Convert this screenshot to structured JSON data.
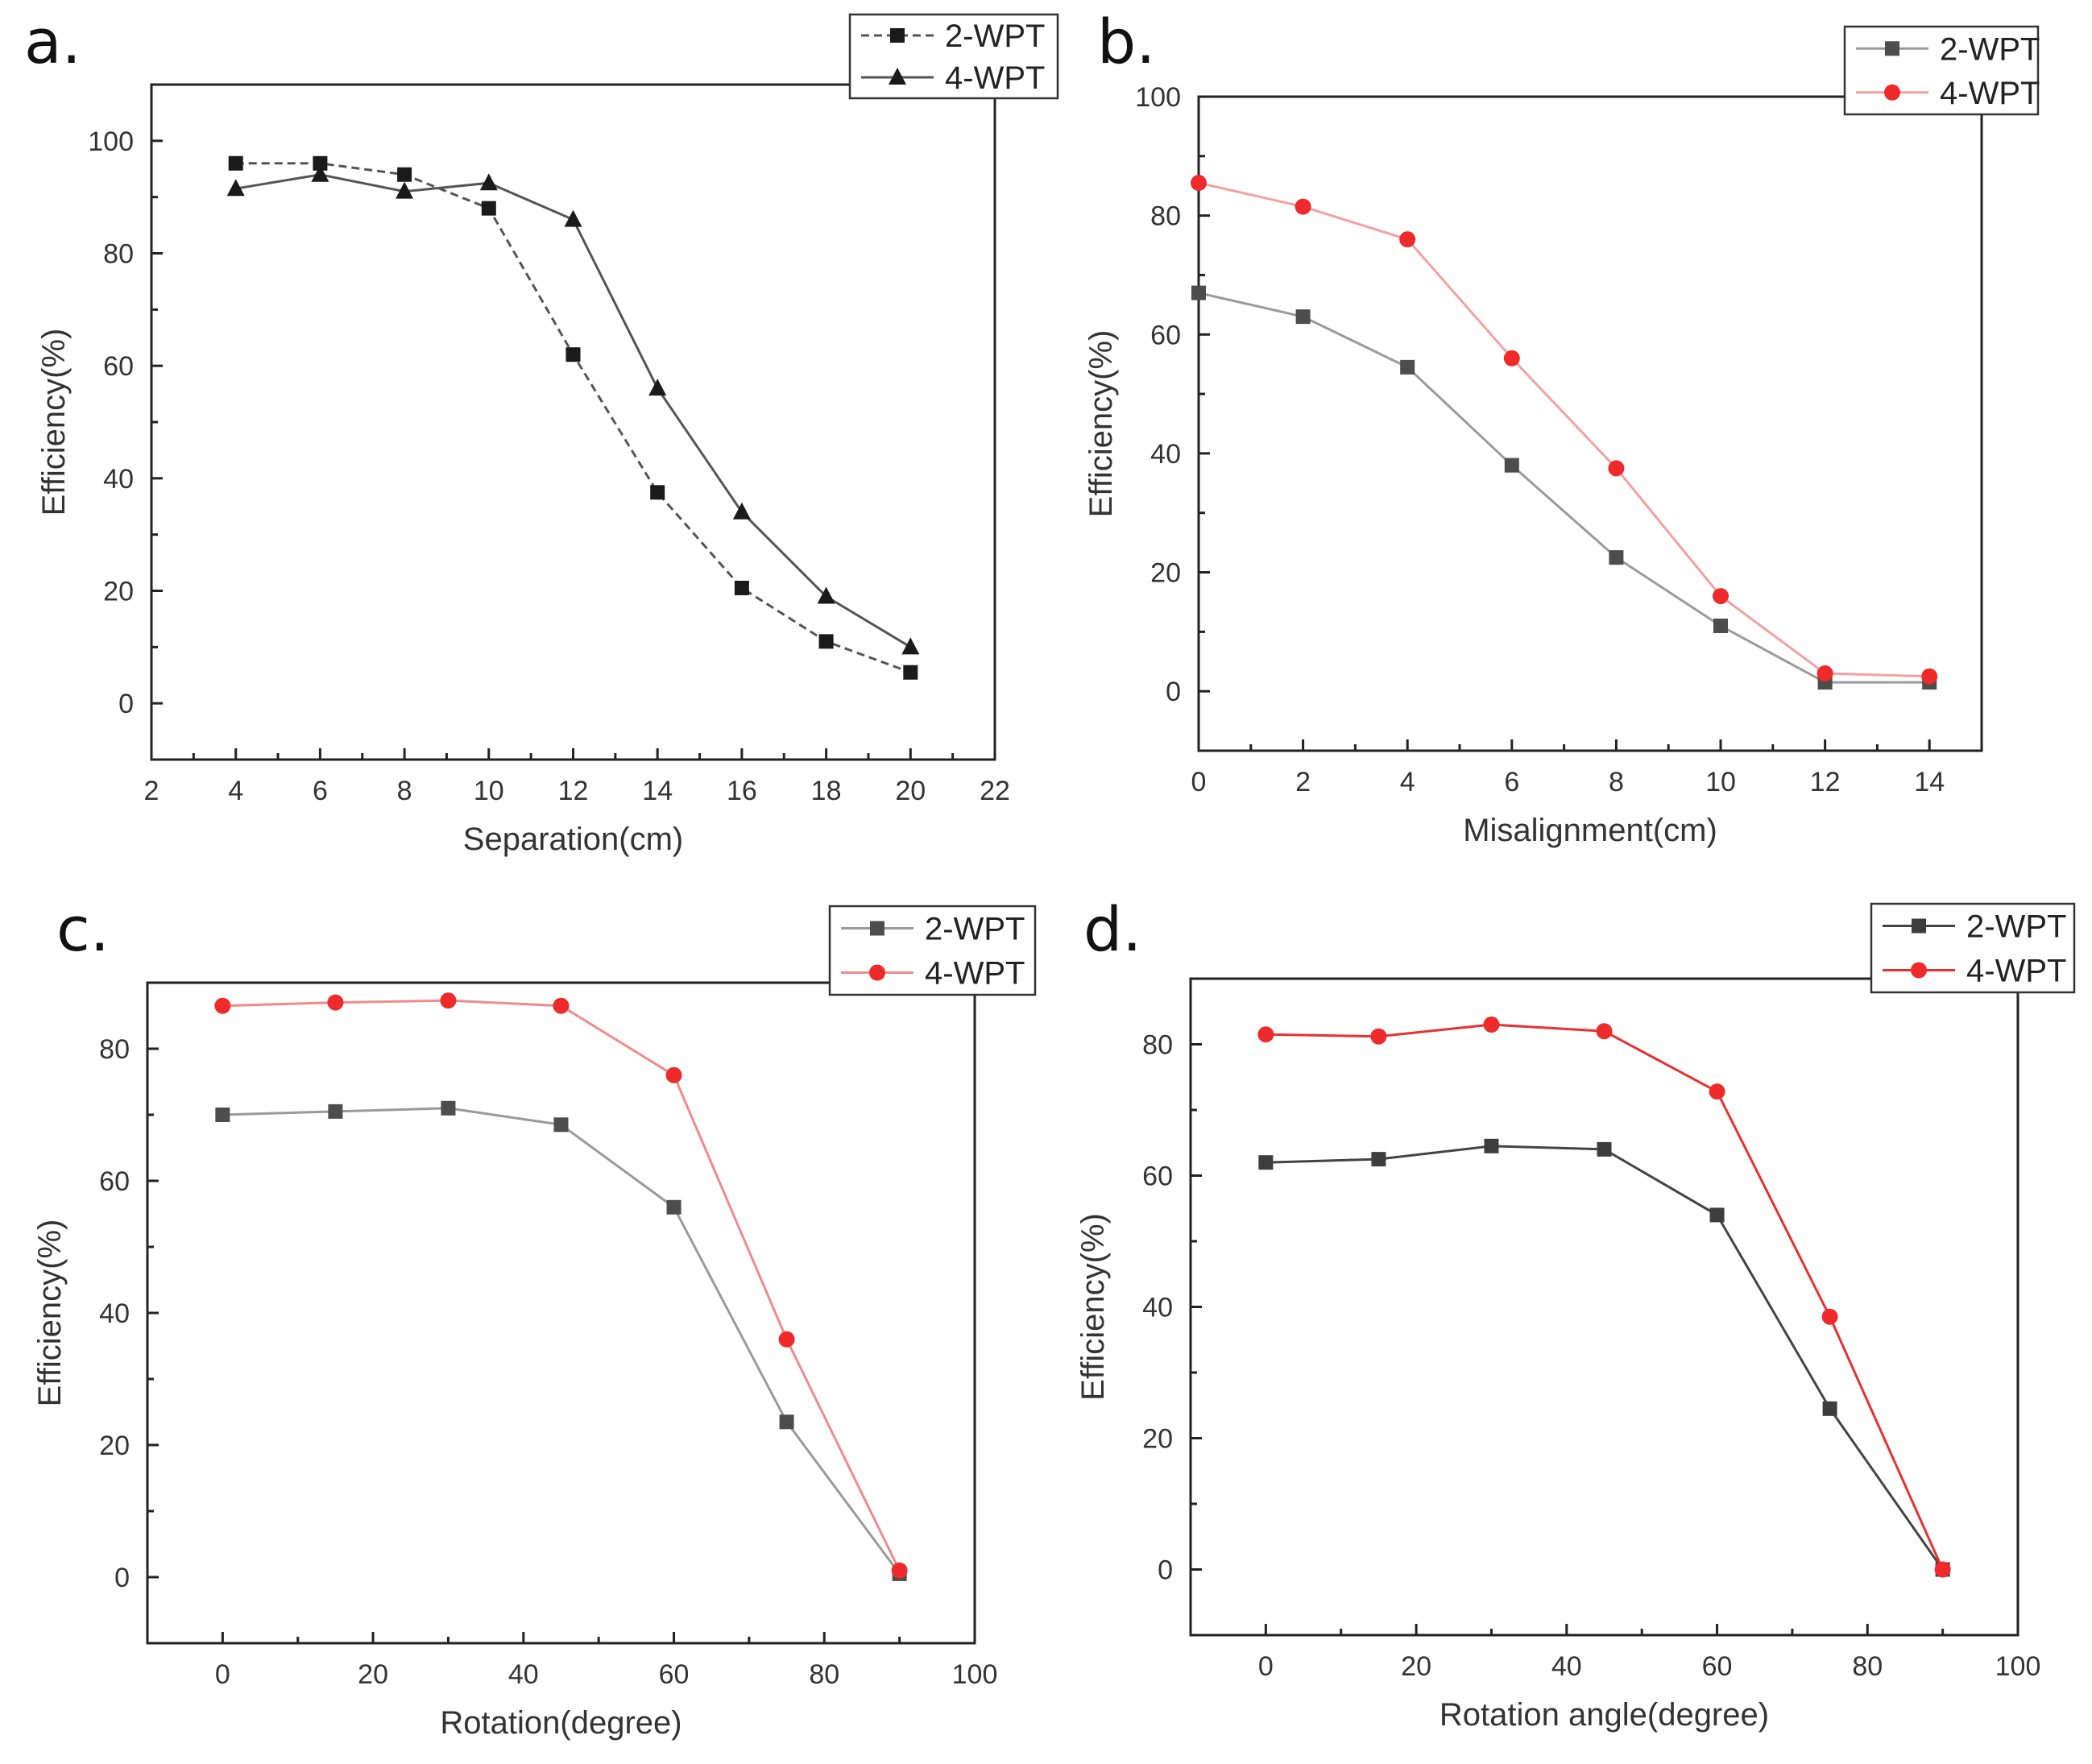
{
  "chart_data": [
    {
      "panel": "a.",
      "type": "line",
      "xlabel": "Separation(cm)",
      "ylabel": "Efficiency(%)",
      "xlim": [
        2,
        22
      ],
      "ylim": [
        -10,
        110
      ],
      "xticks": [
        2,
        4,
        6,
        8,
        10,
        12,
        14,
        16,
        18,
        20,
        22
      ],
      "yticks": [
        0,
        20,
        40,
        60,
        80,
        100
      ],
      "legend": "top-right",
      "series": [
        {
          "name": "2-WPT",
          "marker": "square",
          "color": "#1a1a1a",
          "line": "#555555",
          "dash": "10,6",
          "x": [
            4,
            6,
            8,
            10,
            12,
            14,
            16,
            18,
            20
          ],
          "y": [
            96,
            96,
            94,
            88,
            62,
            37.5,
            20.5,
            11,
            5.5
          ]
        },
        {
          "name": "4-WPT",
          "marker": "triangle",
          "color": "#1a1a1a",
          "line": "#555555",
          "dash": "",
          "x": [
            4,
            6,
            8,
            10,
            12,
            14,
            16,
            18,
            20
          ],
          "y": [
            91.5,
            94,
            91,
            92.5,
            86,
            56,
            34,
            19,
            10
          ]
        }
      ]
    },
    {
      "panel": "b.",
      "type": "line",
      "xlabel": "Misalignment(cm)",
      "ylabel": "Efficiency(%)",
      "xlim": [
        0,
        15
      ],
      "ylim": [
        -10,
        100
      ],
      "xticks": [
        0,
        2,
        4,
        6,
        8,
        10,
        12,
        14
      ],
      "yticks": [
        0,
        20,
        40,
        60,
        80,
        100
      ],
      "legend": "top-right",
      "series": [
        {
          "name": "2-WPT",
          "marker": "square",
          "color": "#4d4d4d",
          "line": "#9a9a9a",
          "dash": "",
          "x": [
            0,
            2,
            4,
            6,
            8,
            10,
            12,
            14
          ],
          "y": [
            67,
            63,
            54.5,
            38,
            22.5,
            11,
            1.5,
            1.5
          ]
        },
        {
          "name": "4-WPT",
          "marker": "circle",
          "color": "#ee2a2a",
          "line": "#f3a0a0",
          "dash": "",
          "x": [
            0,
            2,
            4,
            6,
            8,
            10,
            12,
            14
          ],
          "y": [
            85.5,
            81.5,
            76,
            56,
            37.5,
            16,
            3,
            2.5
          ]
        }
      ]
    },
    {
      "panel": "c.",
      "type": "line",
      "xlabel": "Rotation(degree)",
      "ylabel": "Efficiency(%)",
      "xlim": [
        -10,
        100
      ],
      "ylim": [
        -10,
        90
      ],
      "xticks": [
        0,
        20,
        40,
        60,
        80,
        100
      ],
      "yticks": [
        0,
        20,
        40,
        60,
        80
      ],
      "legend": "top-right",
      "series": [
        {
          "name": "2-WPT",
          "marker": "square",
          "color": "#4d4d4d",
          "line": "#9a9a9a",
          "dash": "",
          "x": [
            0,
            15,
            30,
            45,
            60,
            75,
            90
          ],
          "y": [
            70,
            70.5,
            71,
            68.5,
            56,
            23.5,
            0.5
          ]
        },
        {
          "name": "4-WPT",
          "marker": "circle",
          "color": "#ee2a2a",
          "line": "#f08a8a",
          "dash": "",
          "x": [
            0,
            15,
            30,
            45,
            60,
            75,
            90
          ],
          "y": [
            86.5,
            87,
            87.3,
            86.5,
            76,
            36,
            1
          ]
        }
      ]
    },
    {
      "panel": "d.",
      "type": "line",
      "xlabel": "Rotation angle(degree)",
      "ylabel": "Efficiency(%)",
      "xlim": [
        -10,
        100
      ],
      "ylim": [
        -10,
        90
      ],
      "xticks": [
        0,
        20,
        40,
        60,
        80,
        100
      ],
      "yticks": [
        0,
        20,
        40,
        60,
        80
      ],
      "legend": "top-right",
      "series": [
        {
          "name": "2-WPT",
          "marker": "square",
          "color": "#3d3d3d",
          "line": "#444444",
          "dash": "",
          "x": [
            0,
            15,
            30,
            45,
            60,
            75,
            90
          ],
          "y": [
            62,
            62.5,
            64.5,
            64,
            54,
            24.5,
            0
          ]
        },
        {
          "name": "4-WPT",
          "marker": "circle",
          "color": "#ee2a2a",
          "line": "#e83030",
          "dash": "",
          "x": [
            0,
            15,
            30,
            45,
            60,
            75,
            90
          ],
          "y": [
            81.5,
            81.2,
            83,
            82,
            72.8,
            38.5,
            0
          ]
        }
      ]
    }
  ]
}
